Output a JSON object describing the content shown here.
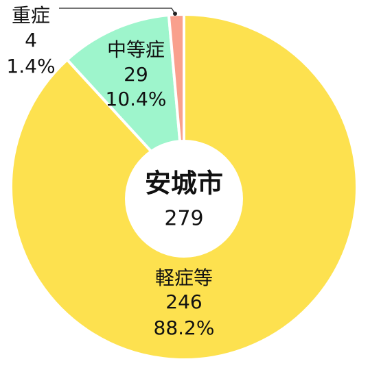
{
  "chart_data": {
    "type": "donut",
    "center_title": "安城市",
    "total": 279,
    "categories": [
      "軽症等",
      "中等症",
      "重症"
    ],
    "counts": [
      246,
      29,
      4
    ],
    "values": [
      88.2,
      10.4,
      1.4
    ],
    "value_labels": [
      "88.2%",
      "10.4%",
      "1.4%"
    ],
    "colors": [
      "#fde14f",
      "#9ef5cc",
      "#f9a08d"
    ]
  }
}
